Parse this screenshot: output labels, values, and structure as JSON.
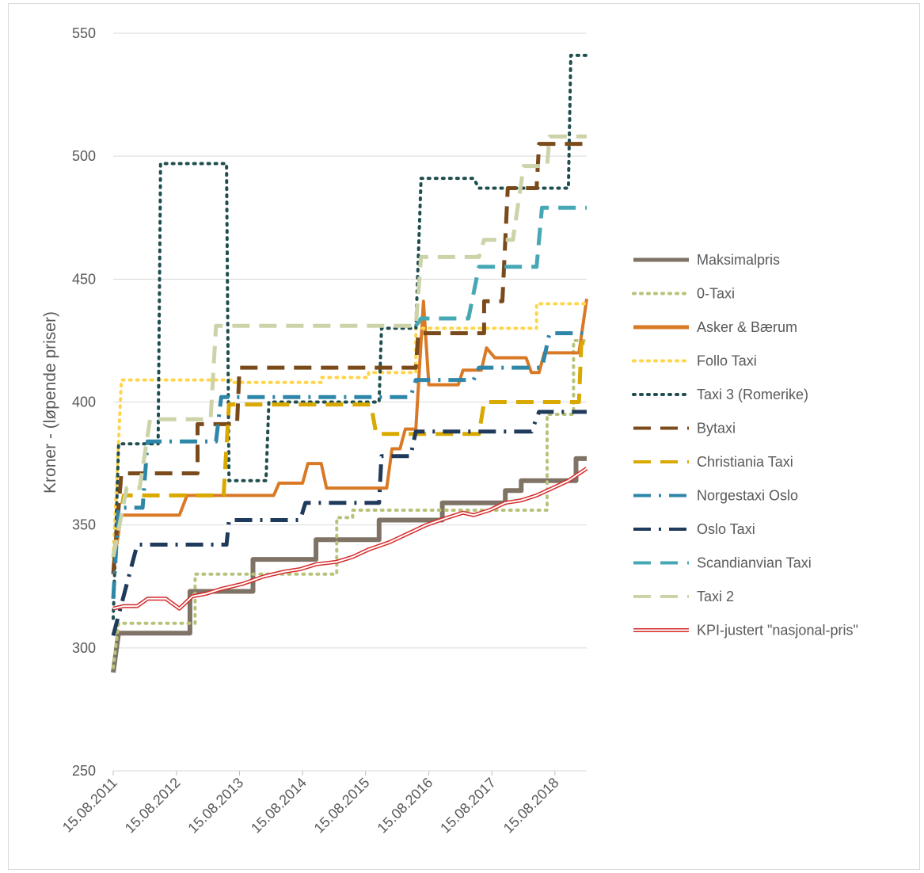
{
  "chart_data": {
    "type": "line",
    "title": "",
    "xlabel": "",
    "ylabel": "Kroner - (løpende priser)",
    "ylim": [
      250,
      550
    ],
    "yticks": [
      250,
      300,
      350,
      400,
      450,
      500,
      550
    ],
    "xlim": [
      "2011-08-15",
      "2019-02-15"
    ],
    "xticks": [
      "15.08.2011",
      "15.08.2012",
      "15.08.2013",
      "15.08.2014",
      "15.08.2015",
      "15.08.2016",
      "15.08.2017",
      "15.08.2018"
    ],
    "grid": "horizontal",
    "legend_position": "right",
    "series": [
      {
        "name": "Maksimalpris",
        "color": "#7f7365",
        "style": "solid",
        "width": 6,
        "points": [
          [
            "2011-08-15",
            290
          ],
          [
            "2011-09-15",
            306
          ],
          [
            "2012-11-01",
            306
          ],
          [
            "2012-11-01",
            323
          ],
          [
            "2013-11-01",
            323
          ],
          [
            "2013-11-01",
            336
          ],
          [
            "2014-11-01",
            336
          ],
          [
            "2014-11-01",
            344
          ],
          [
            "2015-11-01",
            344
          ],
          [
            "2015-11-01",
            352
          ],
          [
            "2016-11-01",
            352
          ],
          [
            "2016-11-01",
            359
          ],
          [
            "2017-11-01",
            359
          ],
          [
            "2017-11-01",
            364
          ],
          [
            "2018-02-01",
            364
          ],
          [
            "2018-02-01",
            368
          ],
          [
            "2018-12-15",
            368
          ],
          [
            "2018-12-15",
            377
          ],
          [
            "2019-02-15",
            377
          ]
        ]
      },
      {
        "name": "0-Taxi",
        "color": "#b8c27a",
        "style": "dot",
        "width": 4,
        "points": [
          [
            "2011-08-15",
            292
          ],
          [
            "2011-09-15",
            310
          ],
          [
            "2012-12-01",
            310
          ],
          [
            "2012-12-01",
            330
          ],
          [
            "2015-03-01",
            330
          ],
          [
            "2015-03-01",
            353
          ],
          [
            "2015-06-01",
            353
          ],
          [
            "2015-06-01",
            356
          ],
          [
            "2018-07-01",
            356
          ],
          [
            "2018-07-01",
            395
          ],
          [
            "2018-12-01",
            395
          ],
          [
            "2018-12-01",
            425
          ],
          [
            "2019-02-15",
            425
          ]
        ]
      },
      {
        "name": "Asker & Bærum",
        "color": "#d97926",
        "style": "solid",
        "width": 4,
        "points": [
          [
            "2011-08-15",
            333
          ],
          [
            "2011-10-01",
            354
          ],
          [
            "2012-09-01",
            354
          ],
          [
            "2012-10-15",
            362
          ],
          [
            "2014-03-01",
            362
          ],
          [
            "2014-04-01",
            367
          ],
          [
            "2014-08-15",
            367
          ],
          [
            "2014-09-15",
            375
          ],
          [
            "2014-12-01",
            375
          ],
          [
            "2015-01-01",
            365
          ],
          [
            "2015-12-15",
            365
          ],
          [
            "2016-01-15",
            381
          ],
          [
            "2016-03-01",
            381
          ],
          [
            "2016-04-01",
            389
          ],
          [
            "2016-06-01",
            389
          ],
          [
            "2016-07-15",
            441
          ],
          [
            "2016-08-15",
            407
          ],
          [
            "2017-02-01",
            407
          ],
          [
            "2017-03-01",
            413
          ],
          [
            "2017-06-15",
            413
          ],
          [
            "2017-07-15",
            422
          ],
          [
            "2017-09-01",
            418
          ],
          [
            "2018-03-01",
            418
          ],
          [
            "2018-04-01",
            412
          ],
          [
            "2018-05-15",
            412
          ],
          [
            "2018-06-15",
            420
          ],
          [
            "2019-01-01",
            420
          ],
          [
            "2019-02-15",
            442
          ]
        ]
      },
      {
        "name": "Follo Taxi",
        "color": "#ffd54a",
        "style": "dot",
        "width": 4,
        "points": [
          [
            "2011-08-15",
            337
          ],
          [
            "2011-10-01",
            409
          ],
          [
            "2013-07-01",
            409
          ],
          [
            "2013-07-01",
            408
          ],
          [
            "2014-12-01",
            408
          ],
          [
            "2014-12-01",
            410
          ],
          [
            "2015-09-01",
            410
          ],
          [
            "2015-09-01",
            412
          ],
          [
            "2016-06-01",
            412
          ],
          [
            "2016-06-01",
            430
          ],
          [
            "2018-05-01",
            430
          ],
          [
            "2018-05-01",
            440
          ],
          [
            "2019-02-15",
            440
          ]
        ]
      },
      {
        "name": "Taxi 3 (Romerike)",
        "color": "#1f4e4f",
        "style": "dot",
        "width": 4,
        "points": [
          [
            "2011-08-15",
            312
          ],
          [
            "2011-09-15",
            383
          ],
          [
            "2012-05-01",
            383
          ],
          [
            "2012-05-15",
            497
          ],
          [
            "2013-06-01",
            497
          ],
          [
            "2013-06-15",
            368
          ],
          [
            "2014-01-15",
            368
          ],
          [
            "2014-02-01",
            400
          ],
          [
            "2015-11-01",
            400
          ],
          [
            "2015-11-15",
            430
          ],
          [
            "2016-06-01",
            430
          ],
          [
            "2016-07-01",
            491
          ],
          [
            "2017-05-01",
            491
          ],
          [
            "2017-06-01",
            487
          ],
          [
            "2018-11-01",
            487
          ],
          [
            "2018-11-15",
            541
          ],
          [
            "2019-02-15",
            541
          ]
        ]
      },
      {
        "name": "Bytaxi",
        "color": "#7a4a1a",
        "style": "dash",
        "width": 5,
        "points": [
          [
            "2011-08-15",
            330
          ],
          [
            "2011-10-01",
            371
          ],
          [
            "2012-12-15",
            371
          ],
          [
            "2012-12-15",
            391
          ],
          [
            "2013-08-01",
            391
          ],
          [
            "2013-08-15",
            414
          ],
          [
            "2016-06-01",
            414
          ],
          [
            "2016-06-15",
            428
          ],
          [
            "2017-07-01",
            428
          ],
          [
            "2017-07-01",
            441
          ],
          [
            "2017-10-15",
            441
          ],
          [
            "2017-11-15",
            487
          ],
          [
            "2018-05-01",
            487
          ],
          [
            "2018-05-15",
            505
          ],
          [
            "2019-02-15",
            505
          ]
        ]
      },
      {
        "name": "Christiania Taxi",
        "color": "#d9a900",
        "style": "dash",
        "width": 5,
        "points": [
          [
            "2011-08-15",
            337
          ],
          [
            "2011-10-15",
            362
          ],
          [
            "2013-05-15",
            362
          ],
          [
            "2013-06-15",
            399
          ],
          [
            "2015-09-15",
            399
          ],
          [
            "2015-10-15",
            387
          ],
          [
            "2017-06-01",
            387
          ],
          [
            "2017-07-01",
            400
          ],
          [
            "2019-01-01",
            400
          ],
          [
            "2019-01-15",
            424
          ],
          [
            "2019-02-15",
            424
          ]
        ]
      },
      {
        "name": "Norgestaxi Oslo",
        "color": "#2e86a8",
        "style": "dashdot",
        "width": 5,
        "points": [
          [
            "2011-08-15",
            320
          ],
          [
            "2011-09-15",
            357
          ],
          [
            "2012-02-01",
            357
          ],
          [
            "2012-03-01",
            384
          ],
          [
            "2013-04-01",
            384
          ],
          [
            "2013-05-01",
            402
          ],
          [
            "2016-05-01",
            402
          ],
          [
            "2016-06-01",
            409
          ],
          [
            "2017-05-01",
            409
          ],
          [
            "2017-06-01",
            414
          ],
          [
            "2018-06-01",
            414
          ],
          [
            "2018-07-15",
            428
          ],
          [
            "2019-02-15",
            428
          ]
        ]
      },
      {
        "name": "Oslo Taxi",
        "color": "#1f3a5a",
        "style": "dashdot",
        "width": 5,
        "points": [
          [
            "2011-08-15",
            305
          ],
          [
            "2012-01-01",
            342
          ],
          [
            "2013-06-01",
            342
          ],
          [
            "2013-06-15",
            352
          ],
          [
            "2014-08-01",
            352
          ],
          [
            "2014-09-01",
            359
          ],
          [
            "2015-11-01",
            359
          ],
          [
            "2015-11-15",
            378
          ],
          [
            "2016-05-01",
            378
          ],
          [
            "2016-06-01",
            388
          ],
          [
            "2018-04-01",
            388
          ],
          [
            "2018-05-15",
            396
          ],
          [
            "2019-02-15",
            396
          ]
        ]
      },
      {
        "name": "Scandianvian Taxi",
        "color": "#47a8b5",
        "style": "dash",
        "width": 5,
        "points": [
          [
            "2016-06-01",
            431
          ],
          [
            "2016-07-01",
            434
          ],
          [
            "2017-04-01",
            434
          ],
          [
            "2017-06-01",
            455
          ],
          [
            "2018-05-01",
            455
          ],
          [
            "2018-06-01",
            479
          ],
          [
            "2019-02-15",
            479
          ]
        ]
      },
      {
        "name": "Taxi 2",
        "color": "#cdd3a8",
        "style": "dash",
        "width": 5,
        "points": [
          [
            "2011-08-15",
            337
          ],
          [
            "2011-11-01",
            365
          ],
          [
            "2012-01-15",
            365
          ],
          [
            "2012-03-15",
            393
          ],
          [
            "2013-03-01",
            393
          ],
          [
            "2013-04-01",
            431
          ],
          [
            "2016-06-01",
            431
          ],
          [
            "2016-07-01",
            459
          ],
          [
            "2017-06-01",
            459
          ],
          [
            "2017-07-01",
            466
          ],
          [
            "2017-12-15",
            466
          ],
          [
            "2018-02-15",
            496
          ],
          [
            "2018-07-01",
            496
          ],
          [
            "2018-07-15",
            508
          ],
          [
            "2019-02-15",
            508
          ]
        ]
      },
      {
        "name": "KPI-justert \"nasjonal-pris\"",
        "color": "#d62b2b",
        "style": "double",
        "width": 2,
        "points": [
          [
            "2011-08-15",
            316
          ],
          [
            "2011-10-15",
            317
          ],
          [
            "2012-01-01",
            317
          ],
          [
            "2012-03-01",
            320
          ],
          [
            "2012-06-15",
            320
          ],
          [
            "2012-09-01",
            316
          ],
          [
            "2012-11-15",
            321
          ],
          [
            "2013-02-01",
            322
          ],
          [
            "2013-05-01",
            324
          ],
          [
            "2013-09-01",
            326
          ],
          [
            "2014-01-01",
            329
          ],
          [
            "2014-05-01",
            331
          ],
          [
            "2014-08-01",
            332
          ],
          [
            "2014-11-01",
            334
          ],
          [
            "2015-03-01",
            335
          ],
          [
            "2015-06-01",
            337
          ],
          [
            "2015-09-01",
            340
          ],
          [
            "2016-01-01",
            343
          ],
          [
            "2016-04-01",
            346
          ],
          [
            "2016-08-01",
            350
          ],
          [
            "2016-12-01",
            353
          ],
          [
            "2017-03-01",
            355
          ],
          [
            "2017-05-01",
            354
          ],
          [
            "2017-08-01",
            356
          ],
          [
            "2017-11-01",
            359
          ],
          [
            "2018-02-01",
            360
          ],
          [
            "2018-05-01",
            362
          ],
          [
            "2018-08-01",
            365
          ],
          [
            "2018-11-01",
            368
          ],
          [
            "2019-02-15",
            373
          ]
        ]
      }
    ]
  }
}
